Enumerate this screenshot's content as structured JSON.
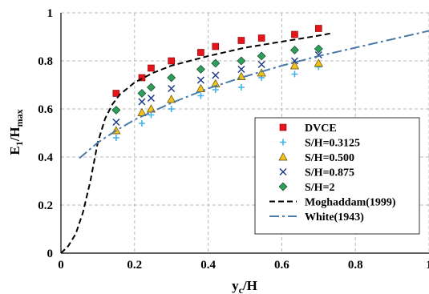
{
  "chart_data": {
    "type": "scatter",
    "xlim": [
      0,
      1
    ],
    "ylim": [
      0,
      1
    ],
    "x_ticks": [
      "0",
      "0.2",
      "0.4",
      "0.6",
      "0.8",
      "1"
    ],
    "y_ticks": [
      "0",
      "0.2",
      "0.4",
      "0.6",
      "0.8",
      "1"
    ],
    "xlabel": {
      "main": "y",
      "sub": "c",
      "rest": "/H"
    },
    "ylabel": {
      "main": "E",
      "sub1": "1",
      "mid": "/H",
      "sub2": "max"
    },
    "grid": true,
    "legend_position": "bottom-right",
    "series": [
      {
        "name": "DVCE",
        "marker": "square",
        "color": "#e8141c",
        "x": [
          0.15,
          0.22,
          0.245,
          0.3,
          0.38,
          0.42,
          0.49,
          0.545,
          0.635,
          0.7
        ],
        "y": [
          0.665,
          0.73,
          0.77,
          0.8,
          0.835,
          0.86,
          0.885,
          0.895,
          0.91,
          0.935
        ]
      },
      {
        "name": "S/H=0.3125",
        "marker": "plus",
        "color": "#3fb2ec",
        "x": [
          0.15,
          0.22,
          0.245,
          0.3,
          0.38,
          0.42,
          0.49,
          0.545,
          0.635,
          0.7
        ],
        "y": [
          0.48,
          0.54,
          0.575,
          0.6,
          0.655,
          0.68,
          0.69,
          0.73,
          0.745,
          0.775
        ]
      },
      {
        "name": "S/H=0.500",
        "marker": "triangle",
        "color": "#f2c21b",
        "x": [
          0.15,
          0.22,
          0.245,
          0.3,
          0.38,
          0.42,
          0.49,
          0.545,
          0.635,
          0.7
        ],
        "y": [
          0.51,
          0.585,
          0.6,
          0.64,
          0.685,
          0.705,
          0.735,
          0.75,
          0.78,
          0.79
        ]
      },
      {
        "name": "S/H=0.875",
        "marker": "x",
        "color": "#1f3a8a",
        "x": [
          0.15,
          0.22,
          0.245,
          0.3,
          0.38,
          0.42,
          0.49,
          0.545,
          0.635,
          0.7
        ],
        "y": [
          0.545,
          0.63,
          0.645,
          0.685,
          0.72,
          0.74,
          0.765,
          0.785,
          0.8,
          0.825
        ]
      },
      {
        "name": "S/H=2",
        "marker": "diamond",
        "color": "#2e9e5b",
        "x": [
          0.15,
          0.22,
          0.245,
          0.3,
          0.38,
          0.42,
          0.49,
          0.545,
          0.635,
          0.7
        ],
        "y": [
          0.595,
          0.665,
          0.69,
          0.73,
          0.765,
          0.79,
          0.8,
          0.82,
          0.845,
          0.85
        ]
      },
      {
        "name": "Moghaddam(1999)",
        "marker": "line",
        "style": "dashed",
        "color": "#000000",
        "x": [
          0.0,
          0.02,
          0.04,
          0.06,
          0.08,
          0.1,
          0.12,
          0.14,
          0.16,
          0.2,
          0.25,
          0.3,
          0.4,
          0.5,
          0.6,
          0.7,
          0.735
        ],
        "y": [
          0.0,
          0.03,
          0.08,
          0.17,
          0.3,
          0.46,
          0.56,
          0.62,
          0.66,
          0.71,
          0.75,
          0.78,
          0.82,
          0.855,
          0.88,
          0.905,
          0.915
        ]
      },
      {
        "name": "White(1943)",
        "marker": "line",
        "style": "dashdot",
        "color": "#4a7ba8",
        "x": [
          0.05,
          0.1,
          0.15,
          0.2,
          0.3,
          0.4,
          0.5,
          0.6,
          0.7,
          0.8,
          0.9,
          1.0
        ],
        "y": [
          0.395,
          0.46,
          0.51,
          0.555,
          0.625,
          0.685,
          0.735,
          0.78,
          0.82,
          0.855,
          0.89,
          0.925
        ]
      }
    ]
  }
}
